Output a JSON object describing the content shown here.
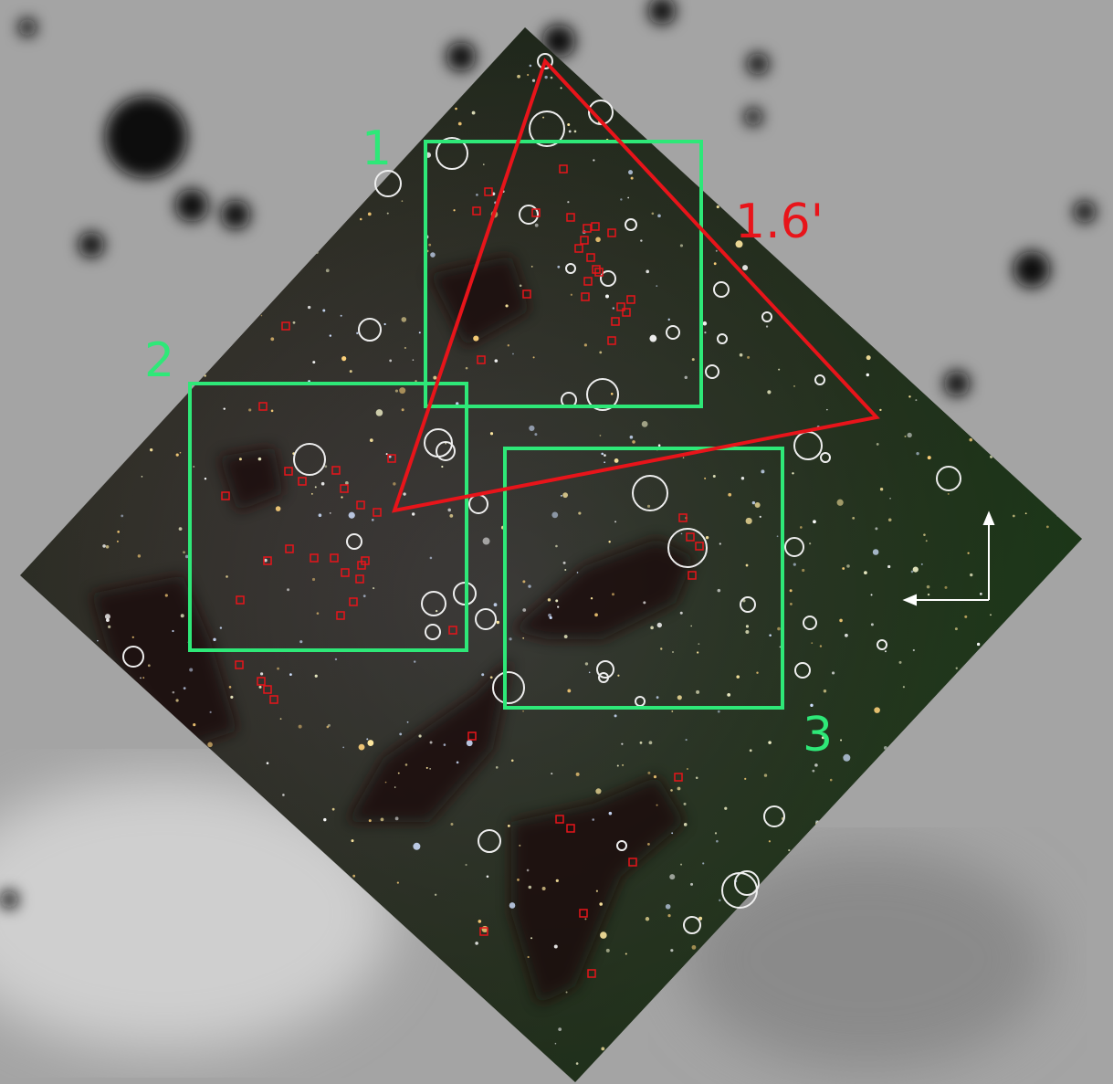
{
  "panels": [
    {
      "label": "1"
    },
    {
      "label": "2"
    },
    {
      "label": "3"
    }
  ],
  "scale_label": "1.6'"
}
